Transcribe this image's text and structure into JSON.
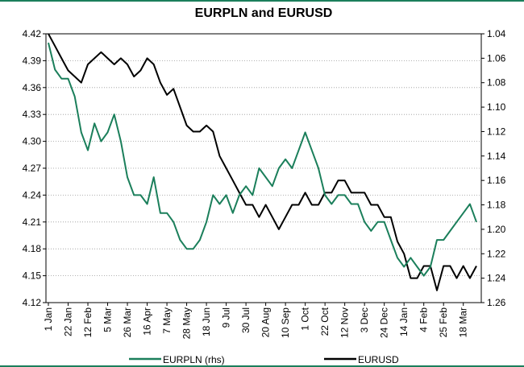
{
  "chart_data": {
    "type": "line",
    "title": "EURPLN and EURUSD",
    "categories": [
      "1 Jan",
      null,
      null,
      "22 Jan",
      null,
      null,
      "12 Feb",
      null,
      null,
      "5 Mar",
      null,
      null,
      "26 Mar",
      null,
      null,
      "16 Apr",
      null,
      null,
      "7 May",
      null,
      null,
      "28 May",
      null,
      null,
      "18 Jun",
      null,
      null,
      "9 Jul",
      null,
      null,
      "30 Jul",
      null,
      null,
      "20 Aug",
      null,
      null,
      "10 Sep",
      null,
      null,
      "1 Oct",
      null,
      null,
      "22 Oct",
      null,
      null,
      "12 Nov",
      null,
      null,
      "3 Dec",
      null,
      null,
      "24 Dec",
      null,
      null,
      "14 Jan",
      null,
      null,
      "4 Feb",
      null,
      null,
      "25 Feb",
      null,
      null,
      "18 Mar",
      null,
      null
    ],
    "series": [
      {
        "name": "EURPLN (rhs)",
        "color": "#1b7f5b",
        "values": [
          4.41,
          4.38,
          4.37,
          4.37,
          4.35,
          4.31,
          4.29,
          4.32,
          4.3,
          4.31,
          4.33,
          4.3,
          4.26,
          4.24,
          4.24,
          4.23,
          4.26,
          4.22,
          4.22,
          4.21,
          4.19,
          4.18,
          4.18,
          4.19,
          4.21,
          4.24,
          4.23,
          4.24,
          4.22,
          4.24,
          4.25,
          4.24,
          4.27,
          4.26,
          4.25,
          4.27,
          4.28,
          4.27,
          4.29,
          4.31,
          4.29,
          4.27,
          4.24,
          4.23,
          4.24,
          4.24,
          4.23,
          4.23,
          4.21,
          4.2,
          4.21,
          4.21,
          4.19,
          4.17,
          4.16,
          4.17,
          4.16,
          4.15,
          4.16,
          4.19,
          4.19,
          4.2,
          4.21,
          4.22,
          4.23,
          4.21
        ]
      },
      {
        "name": "EURUSD",
        "color": "#000000",
        "axis": "y2",
        "values": [
          1.04,
          1.05,
          1.06,
          1.07,
          1.075,
          1.08,
          1.065,
          1.06,
          1.055,
          1.06,
          1.065,
          1.06,
          1.065,
          1.075,
          1.07,
          1.06,
          1.065,
          1.08,
          1.09,
          1.085,
          1.1,
          1.115,
          1.12,
          1.12,
          1.115,
          1.12,
          1.14,
          1.15,
          1.16,
          1.17,
          1.18,
          1.18,
          1.19,
          1.18,
          1.19,
          1.2,
          1.19,
          1.18,
          1.18,
          1.17,
          1.18,
          1.18,
          1.17,
          1.17,
          1.16,
          1.16,
          1.17,
          1.17,
          1.17,
          1.18,
          1.18,
          1.19,
          1.19,
          1.21,
          1.22,
          1.24,
          1.24,
          1.23,
          1.23,
          1.25,
          1.23,
          1.23,
          1.24,
          1.23,
          1.24,
          1.23
        ]
      }
    ],
    "ylim": [
      4.12,
      4.42
    ],
    "yticks": [
      4.12,
      4.15,
      4.18,
      4.21,
      4.24,
      4.27,
      {
        "value": 4.3,
        "label": "4.30"
      },
      4.33,
      4.36,
      4.39,
      4.42
    ],
    "y2lim": [
      1.04,
      1.26
    ],
    "y2_inverted": true,
    "y2ticks": [
      1.04,
      1.06,
      1.08,
      {
        "value": 1.1,
        "label": "1.10"
      },
      1.12,
      1.14,
      1.16,
      1.18,
      {
        "value": 1.2,
        "label": "1.20"
      },
      1.22,
      1.24,
      1.26
    ],
    "grid": true,
    "legend": "bottom"
  }
}
